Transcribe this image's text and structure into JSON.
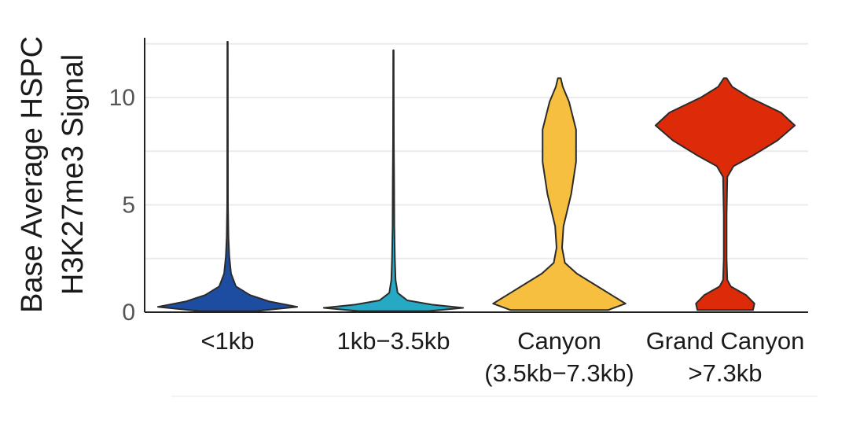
{
  "chart_data": {
    "type": "violin",
    "title": "",
    "xlabel": "",
    "ylabel_lines": [
      "Base Average HSPC",
      "H3K27me3 Signal"
    ],
    "ylim": [
      0,
      12.6
    ],
    "yticks": [
      0,
      5,
      10
    ],
    "grid": true,
    "legend": "none",
    "categories": [
      {
        "label_lines": [
          "<1kb"
        ],
        "color": "#1c4da1",
        "min": 0.05,
        "max": 12.6,
        "density": [
          [
            0.05,
            0.4
          ],
          [
            0.25,
            1.0
          ],
          [
            0.5,
            0.6
          ],
          [
            0.8,
            0.32
          ],
          [
            1.2,
            0.12
          ],
          [
            1.8,
            0.05
          ],
          [
            2.6,
            0.025
          ],
          [
            3.5,
            0.012
          ],
          [
            5,
            0.006
          ],
          [
            8,
            0.004
          ],
          [
            12.6,
            0.003
          ]
        ]
      },
      {
        "label_lines": [
          "1kb−3.5kb"
        ],
        "color": "#26a9c4",
        "min": 0.05,
        "max": 12.2,
        "density": [
          [
            0.05,
            0.5
          ],
          [
            0.2,
            1.0
          ],
          [
            0.35,
            0.55
          ],
          [
            0.55,
            0.2
          ],
          [
            0.9,
            0.06
          ],
          [
            1.5,
            0.03
          ],
          [
            2.5,
            0.02
          ],
          [
            4,
            0.012
          ],
          [
            6,
            0.01
          ],
          [
            8,
            0.006
          ],
          [
            10,
            0.004
          ],
          [
            12.2,
            0.003
          ]
        ]
      },
      {
        "label_lines": [
          "Canyon",
          "(3.5kb−7.3kb)"
        ],
        "color": "#f7bf3f",
        "min": 0.1,
        "max": 10.9,
        "density": [
          [
            0.1,
            0.7
          ],
          [
            0.4,
            0.95
          ],
          [
            0.8,
            0.75
          ],
          [
            1.3,
            0.5
          ],
          [
            1.8,
            0.25
          ],
          [
            2.3,
            0.08
          ],
          [
            3.0,
            0.04
          ],
          [
            4.0,
            0.06
          ],
          [
            5.5,
            0.17
          ],
          [
            7.0,
            0.24
          ],
          [
            8.5,
            0.24
          ],
          [
            9.8,
            0.14
          ],
          [
            10.5,
            0.05
          ],
          [
            10.9,
            0.02
          ]
        ]
      },
      {
        "label_lines": [
          "Grand Canyon",
          ">7.3kb"
        ],
        "color": "#dd2a08",
        "min": 0.1,
        "max": 10.9,
        "density": [
          [
            0.1,
            0.4
          ],
          [
            0.4,
            0.42
          ],
          [
            0.8,
            0.3
          ],
          [
            1.2,
            0.08
          ],
          [
            1.5,
            0.03
          ],
          [
            2.5,
            0.02
          ],
          [
            4.5,
            0.02
          ],
          [
            6.3,
            0.03
          ],
          [
            6.8,
            0.12
          ],
          [
            7.3,
            0.4
          ],
          [
            8.0,
            0.75
          ],
          [
            8.7,
            1.0
          ],
          [
            9.3,
            0.8
          ],
          [
            10.0,
            0.35
          ],
          [
            10.5,
            0.1
          ],
          [
            10.9,
            0.02
          ]
        ]
      }
    ]
  }
}
